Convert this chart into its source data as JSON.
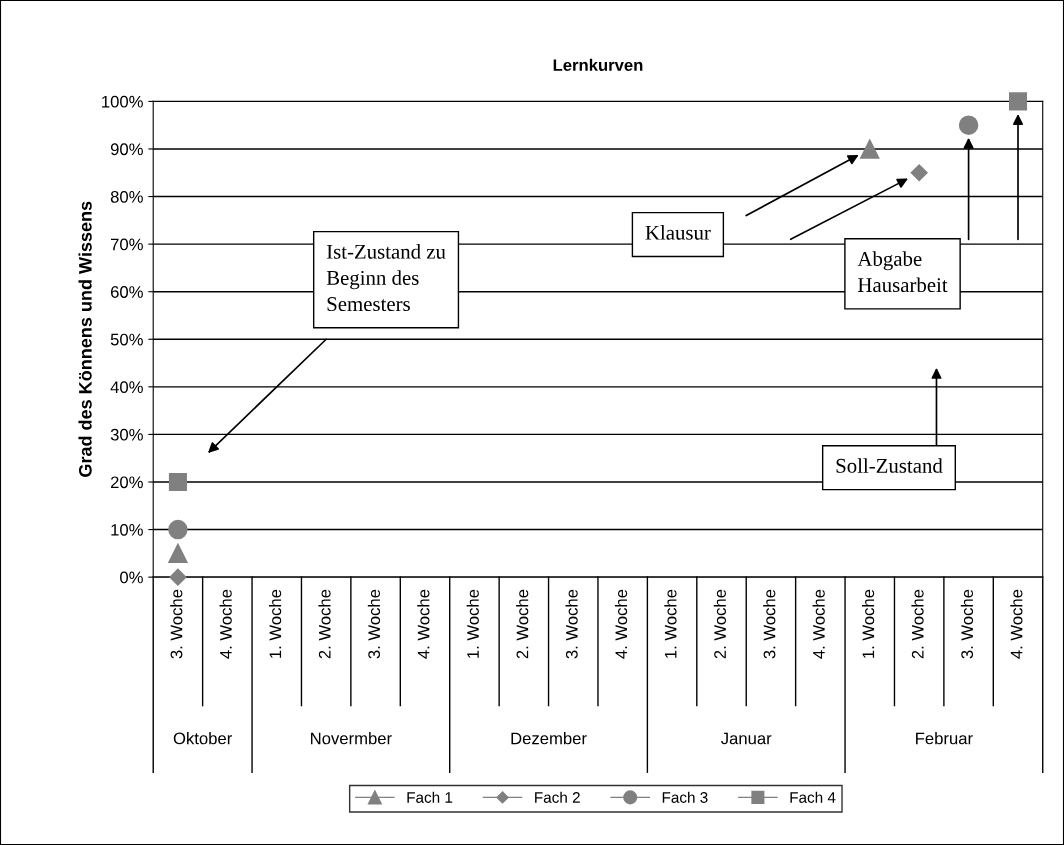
{
  "chart_data": {
    "type": "scatter",
    "title": "Lernkurven",
    "ylabel": "Grad des Könnens und Wissens",
    "categories": [
      "3. Woche",
      "4. Woche",
      "1. Woche",
      "2. Woche",
      "3. Woche",
      "4. Woche",
      "1. Woche",
      "2. Woche",
      "3. Woche",
      "4. Woche",
      "1. Woche",
      "2. Woche",
      "3. Woche",
      "4. Woche",
      "1. Woche",
      "2. Woche",
      "3. Woche",
      "4. Woche"
    ],
    "series": [
      {
        "name": "Fach 1",
        "color": "#808080",
        "marker": "triangle",
        "values": [
          5,
          null,
          null,
          null,
          null,
          null,
          null,
          null,
          null,
          null,
          null,
          null,
          null,
          null,
          90,
          null,
          null,
          null
        ]
      },
      {
        "name": "Fach 2",
        "color": "#808080",
        "marker": "diamond",
        "values": [
          0,
          null,
          null,
          null,
          null,
          null,
          null,
          null,
          null,
          null,
          null,
          null,
          null,
          null,
          null,
          85,
          null,
          null
        ]
      },
      {
        "name": "Fach 3",
        "color": "#808080",
        "marker": "circle",
        "values": [
          10,
          null,
          null,
          null,
          null,
          null,
          null,
          null,
          null,
          null,
          null,
          null,
          null,
          null,
          null,
          null,
          95,
          null
        ]
      },
      {
        "name": "Fach 4",
        "color": "#808080",
        "marker": "square",
        "values": [
          20,
          null,
          null,
          null,
          null,
          null,
          null,
          null,
          null,
          null,
          null,
          null,
          null,
          null,
          null,
          null,
          null,
          100
        ]
      }
    ],
    "ylim": [
      0,
      100
    ],
    "yticks": [
      {
        "value": 0,
        "label": "0%"
      },
      {
        "value": 10,
        "label": "10%"
      },
      {
        "value": 20,
        "label": "20%"
      },
      {
        "value": 30,
        "label": "30%"
      },
      {
        "value": 40,
        "label": "40%"
      },
      {
        "value": 50,
        "label": "50%"
      },
      {
        "value": 60,
        "label": "60%"
      },
      {
        "value": 70,
        "label": "70%"
      },
      {
        "value": 80,
        "label": "80%"
      },
      {
        "value": 90,
        "label": "90%"
      },
      {
        "value": 100,
        "label": "100%"
      }
    ],
    "grid": "y",
    "legend": "bottom",
    "annotations": [
      "Ist-Zustand zu\nBeginn des\nSemesters",
      "Klausur",
      "Abgabe\nHausarbeit",
      "Soll-Zustand",
      "Oktober",
      "Novermber",
      "Dezember",
      "Januar",
      "Februar"
    ]
  }
}
